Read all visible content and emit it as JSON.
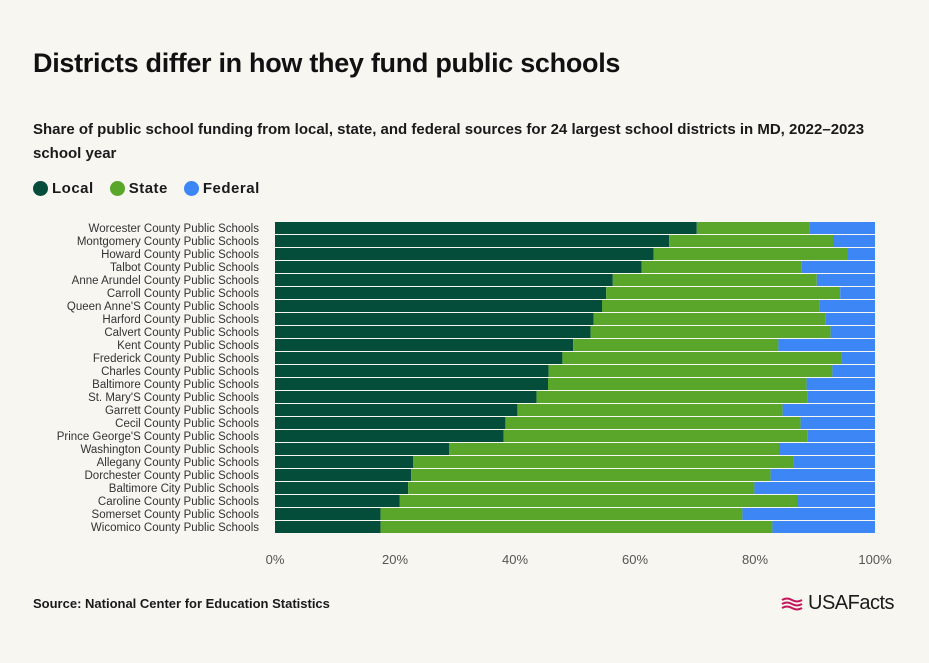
{
  "title": "Districts differ in how they fund public schools",
  "subtitle": "Share of public school funding from local, state, and federal sources for 24 largest school districts in MD, 2022–2023 school year",
  "legend": [
    {
      "label": "Local",
      "color": "#044d3b"
    },
    {
      "label": "State",
      "color": "#5aa62a"
    },
    {
      "label": "Federal",
      "color": "#3d86f5"
    }
  ],
  "source": "Source: National Center for Education Statistics",
  "logo_text": "USAFacts",
  "icons": {
    "logo": "usa-flag-icon"
  },
  "chart_data": {
    "type": "bar",
    "orientation": "horizontal",
    "stacked": true,
    "categories": [
      "Worcester County Public Schools",
      "Montgomery County Public Schools",
      "Howard County Public Schools",
      "Talbot County Public Schools",
      "Anne Arundel County Public Schools",
      "Carroll County Public Schools",
      "Queen Anne'S County Public Schools",
      "Harford County Public Schools",
      "Calvert County Public Schools",
      "Kent County Public Schools",
      "Frederick County Public Schools",
      "Charles County Public Schools",
      "Baltimore County Public Schools",
      "St. Mary'S County Public Schools",
      "Garrett County Public Schools",
      "Cecil County Public Schools",
      "Prince George'S County Public Schools",
      "Washington County Public Schools",
      "Allegany County Public Schools",
      "Dorchester County Public Schools",
      "Baltimore City Public Schools",
      "Caroline County Public Schools",
      "Somerset County Public Schools",
      "Wicomico County Public Schools"
    ],
    "series": [
      {
        "name": "Local",
        "color": "#044d3b",
        "values": [
          70.3,
          65.7,
          63.1,
          61.1,
          56.3,
          55.2,
          54.5,
          53.1,
          52.6,
          49.7,
          47.9,
          45.6,
          45.5,
          43.6,
          40.4,
          38.4,
          38.1,
          29.0,
          23.0,
          22.7,
          22.2,
          20.8,
          17.6,
          17.6
        ]
      },
      {
        "name": "State",
        "color": "#5aa62a",
        "values": [
          18.8,
          27.3,
          32.4,
          26.7,
          34.0,
          39.0,
          36.2,
          38.7,
          40.0,
          34.2,
          46.5,
          47.3,
          43.1,
          45.1,
          44.2,
          49.2,
          50.7,
          55.0,
          63.4,
          59.9,
          57.7,
          66.2,
          60.3,
          65.3
        ]
      },
      {
        "name": "Federal",
        "color": "#3d86f5",
        "values": [
          10.9,
          7.0,
          4.5,
          12.2,
          9.7,
          5.8,
          9.3,
          8.2,
          7.4,
          16.1,
          5.6,
          7.1,
          11.4,
          11.3,
          15.4,
          12.4,
          11.2,
          16.0,
          13.6,
          17.4,
          20.1,
          13.0,
          22.1,
          17.1
        ]
      }
    ],
    "x_ticks": [
      "0%",
      "20%",
      "40%",
      "60%",
      "80%",
      "100%"
    ],
    "xlim": [
      0,
      100
    ],
    "legend_position": "top-left",
    "grid": false
  }
}
